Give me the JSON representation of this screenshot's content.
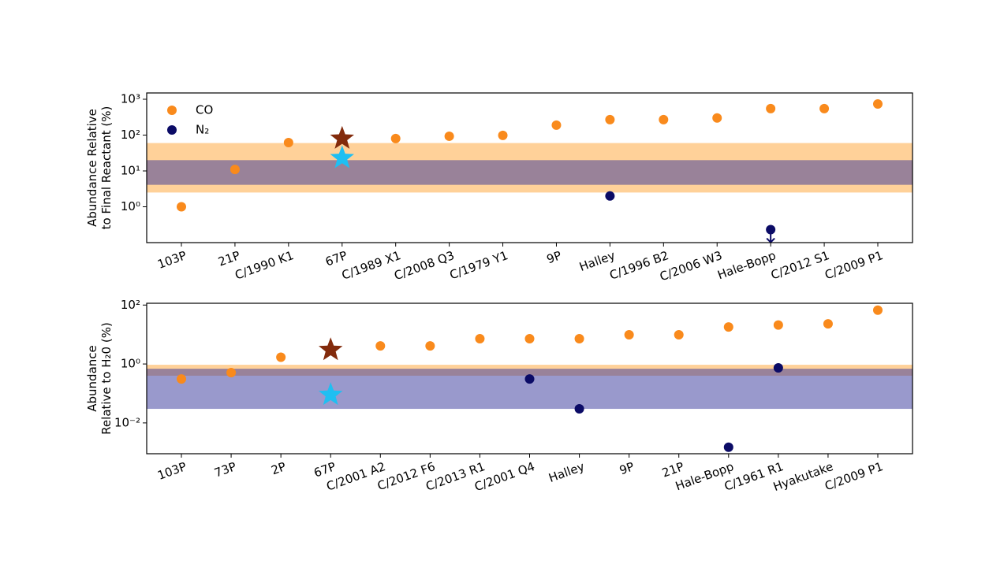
{
  "chart_data": [
    {
      "type": "scatter",
      "ylabel": [
        "Abundance Relative",
        "to Final Reactant (%)"
      ],
      "categories": [
        "103P",
        "21P",
        "C/1990 K1",
        "67P",
        "C/1989 X1",
        "C/2008 Q3",
        "C/1979 Y1",
        "9P",
        "Halley",
        "C/1996 B2",
        "C/2006 W3",
        "Hale-Bopp",
        "C/2012 S1",
        "C/2009 P1"
      ],
      "log_y": true,
      "ylim": [
        0.1,
        1500
      ],
      "yticks": [
        {
          "value": 1,
          "label": "10⁰"
        },
        {
          "value": 10,
          "label": "10¹"
        },
        {
          "value": 100,
          "label": "10²"
        },
        {
          "value": 1000,
          "label": "10³"
        }
      ],
      "bands": [
        {
          "low": 2.5,
          "high": 60,
          "color": "#ff8c00",
          "opacity": 0.4
        },
        {
          "low": 4.1,
          "high": 20,
          "color": "#333399",
          "opacity": 0.5
        }
      ],
      "legend": "upper left",
      "series": [
        {
          "name": "CO",
          "color": "#f98a1c",
          "marker": "circle",
          "values": [
            1.0,
            11,
            62,
            null,
            80,
            93,
            98,
            190,
            270,
            270,
            300,
            550,
            550,
            740
          ]
        },
        {
          "name": "N₂",
          "color": "#0b0b66",
          "marker": "circle",
          "values": [
            null,
            null,
            null,
            null,
            null,
            null,
            null,
            null,
            2.0,
            null,
            null,
            0.23,
            null,
            null
          ],
          "upper_limit": [
            false,
            false,
            false,
            false,
            false,
            false,
            false,
            false,
            false,
            false,
            false,
            true,
            false,
            false
          ]
        },
        {
          "color": "#832b0c",
          "marker": "star",
          "values": [
            null,
            null,
            null,
            80,
            null,
            null,
            null,
            null,
            null,
            null,
            null,
            null,
            null,
            null
          ]
        },
        {
          "color": "#1fbff2",
          "marker": "star",
          "values": [
            null,
            null,
            null,
            23,
            null,
            null,
            null,
            null,
            null,
            null,
            null,
            null,
            null,
            null
          ]
        }
      ]
    },
    {
      "type": "scatter",
      "ylabel": [
        "Abundance",
        "Relative to H₂0 (%)"
      ],
      "categories": [
        "103P",
        "73P",
        "2P",
        "67P",
        "C/2001 A2",
        "C/2012 F6",
        "C/2013 R1",
        "C/2001 Q4",
        "Halley",
        "9P",
        "21P",
        "Hale-Bopp",
        "C/1961 R1",
        "Hyakutake",
        "C/2009 P1"
      ],
      "log_y": true,
      "ylim": [
        0.0009,
        115
      ],
      "yticks": [
        {
          "value": 0.01,
          "label": "10⁻²"
        },
        {
          "value": 1,
          "label": "10⁰"
        },
        {
          "value": 100,
          "label": "10²"
        }
      ],
      "bands": [
        {
          "low": 0.4,
          "high": 0.94,
          "color": "#ff8c00",
          "opacity": 0.4
        },
        {
          "low": 0.03,
          "high": 0.69,
          "color": "#333399",
          "opacity": 0.5
        }
      ],
      "series": [
        {
          "name": "CO",
          "color": "#f98a1c",
          "marker": "circle",
          "values": [
            0.31,
            0.51,
            1.7,
            null,
            4.1,
            4.1,
            7.2,
            7.2,
            7.2,
            9.8,
            9.8,
            18,
            21,
            23,
            67
          ]
        },
        {
          "name": "N₂",
          "color": "#0b0b66",
          "marker": "circle",
          "values": [
            null,
            null,
            null,
            null,
            null,
            null,
            null,
            0.31,
            0.03,
            null,
            null,
            0.0015,
            0.74,
            null,
            null
          ]
        },
        {
          "color": "#832b0c",
          "marker": "star",
          "values": [
            null,
            null,
            null,
            3.0,
            null,
            null,
            null,
            null,
            null,
            null,
            null,
            null,
            null,
            null,
            null
          ]
        },
        {
          "color": "#1fbff2",
          "marker": "star",
          "values": [
            null,
            null,
            null,
            0.09,
            null,
            null,
            null,
            null,
            null,
            null,
            null,
            null,
            null,
            null,
            null
          ]
        }
      ]
    }
  ]
}
